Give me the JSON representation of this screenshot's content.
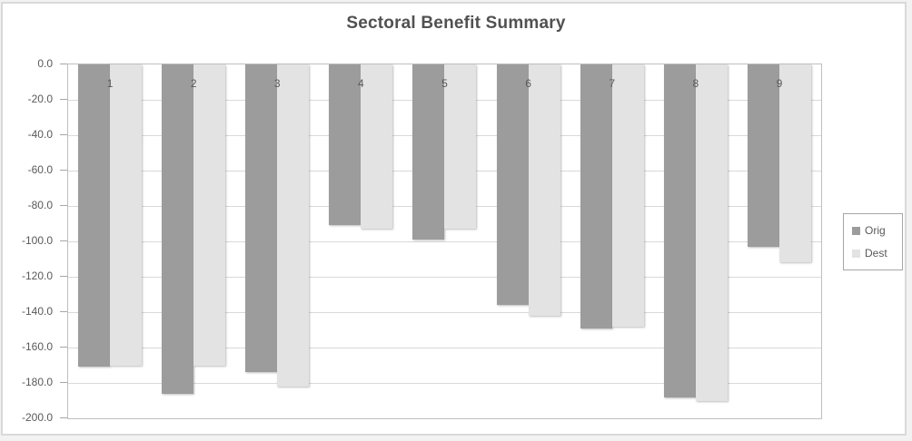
{
  "theme": {
    "canvas_background": "#ffffff",
    "canvas_border": "#d9d9d9",
    "axis_line": "#a6a6a6",
    "gridline": "#d9d9d9",
    "text": "#595959",
    "title_color": "#515151",
    "orig_bar_color": "#9c9c9c",
    "dest_bar_color": "#e3e3e3"
  },
  "chart_data": {
    "type": "bar",
    "title": "Sectoral Benefit Summary",
    "orientation": "vertical",
    "categories": [
      "1",
      "2",
      "3",
      "4",
      "5",
      "6",
      "7",
      "8",
      "9"
    ],
    "series": [
      {
        "name": "Orig",
        "color": "#9c9c9c",
        "values": [
          -171,
          -186,
          -174,
          -91,
          -99,
          -136,
          -149,
          -188,
          -103
        ]
      },
      {
        "name": "Dest",
        "color": "#e3e3e3",
        "values": [
          -170,
          -170,
          -182,
          -93,
          -93,
          -142,
          -148,
          -190,
          -112
        ]
      }
    ],
    "ylim": [
      -200,
      0
    ],
    "ytick_step": 20,
    "ytick_labels": [
      "0.0",
      "-20.0",
      "-40.0",
      "-60.0",
      "-80.0",
      "-100.0",
      "-120.0",
      "-140.0",
      "-160.0",
      "-180.0",
      "-200.0"
    ],
    "grid": true,
    "legend_position": "right"
  }
}
